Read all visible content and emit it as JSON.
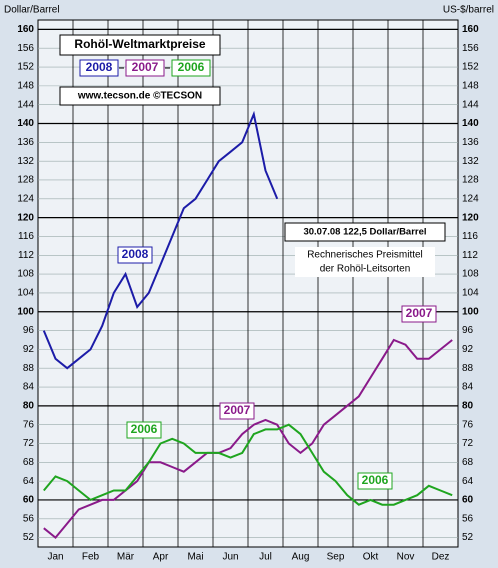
{
  "chart_data": {
    "type": "line",
    "title": "Rohöl-Weltmarktpreise",
    "y_axis_label": "Dollar/Barrel",
    "y2_axis_label": "US-$/barrel",
    "source": "www.tecson.de  ©TECSON",
    "latest_note": "30.07.08   122,5 Dollar/Barrel",
    "subtitle_lines": [
      "Rechnerisches Preismittel",
      "der Rohöl-Leitsorten"
    ],
    "categories": [
      null,
      "Jan",
      null,
      null,
      "Feb",
      null,
      null,
      "Mär",
      null,
      null,
      "Apr",
      null,
      null,
      "Mai",
      null,
      null,
      "Jun",
      null,
      null,
      "Jul",
      null,
      null,
      "Aug",
      null,
      null,
      "Sep",
      null,
      null,
      "Okt",
      null,
      null,
      "Nov",
      null,
      null,
      "Dez",
      null
    ],
    "series": [
      {
        "name": "2008",
        "color": "#1c1ca8",
        "values": [
          96,
          90,
          88,
          90,
          92,
          97,
          104,
          108,
          101,
          104,
          110,
          116,
          122,
          124,
          128,
          132,
          134,
          136,
          142,
          130,
          124,
          null,
          null,
          null,
          null,
          null,
          null,
          null,
          null,
          null,
          null,
          null,
          null,
          null,
          null,
          null
        ]
      },
      {
        "name": "2007",
        "color": "#8a1a8a",
        "values": [
          54,
          52,
          55,
          58,
          59,
          60,
          60,
          62,
          64,
          68,
          68,
          67,
          66,
          68,
          70,
          70,
          71,
          74,
          76,
          77,
          76,
          72,
          70,
          72,
          76,
          78,
          80,
          82,
          86,
          90,
          94,
          93,
          90,
          90,
          92,
          94
        ]
      },
      {
        "name": "2006",
        "color": "#1fa51f",
        "values": [
          62,
          65,
          64,
          62,
          60,
          61,
          62,
          62,
          65,
          68,
          72,
          73,
          72,
          70,
          70,
          70,
          69,
          70,
          74,
          75,
          75,
          76,
          74,
          70,
          66,
          64,
          61,
          59,
          60,
          59,
          59,
          60,
          61,
          63,
          62,
          61
        ]
      }
    ],
    "ylim": [
      50,
      162
    ],
    "yticks": [
      52,
      56,
      60,
      64,
      68,
      72,
      76,
      80,
      84,
      88,
      92,
      96,
      100,
      104,
      108,
      112,
      116,
      120,
      124,
      128,
      132,
      136,
      140,
      144,
      148,
      152,
      156,
      160
    ],
    "grid": true
  }
}
